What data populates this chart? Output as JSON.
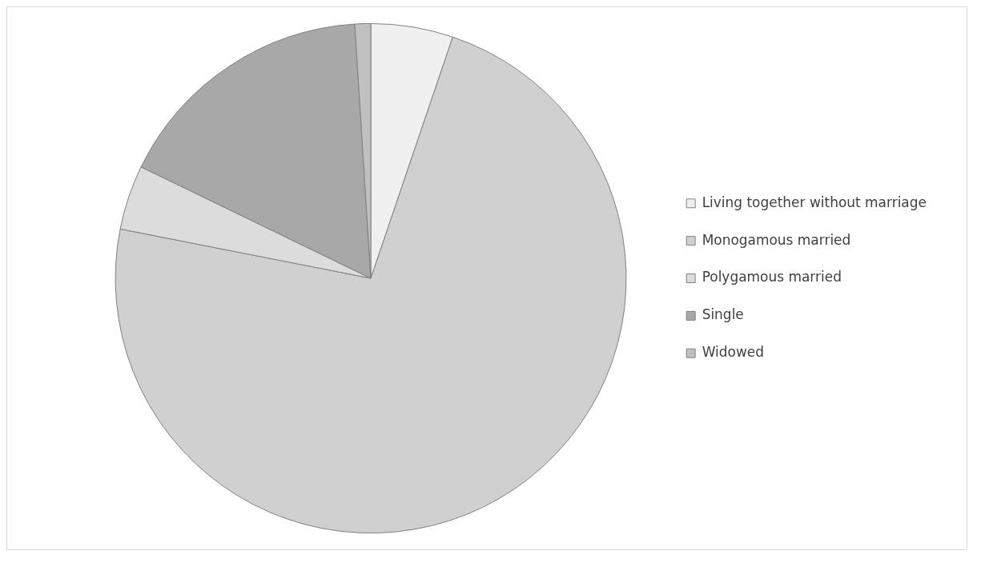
{
  "chart_data": {
    "type": "pie",
    "categories": [
      "Living together without marriage",
      "Monogamous married",
      "Polygamous married",
      "Single",
      "Widowed"
    ],
    "values": [
      5.2,
      72.9,
      4.1,
      16.8,
      1.0
    ],
    "colors": [
      "#f0f0f0",
      "#d0d0d0",
      "#dcdcdc",
      "#a8a8a8",
      "#c0c0c0"
    ],
    "legend": "right"
  }
}
